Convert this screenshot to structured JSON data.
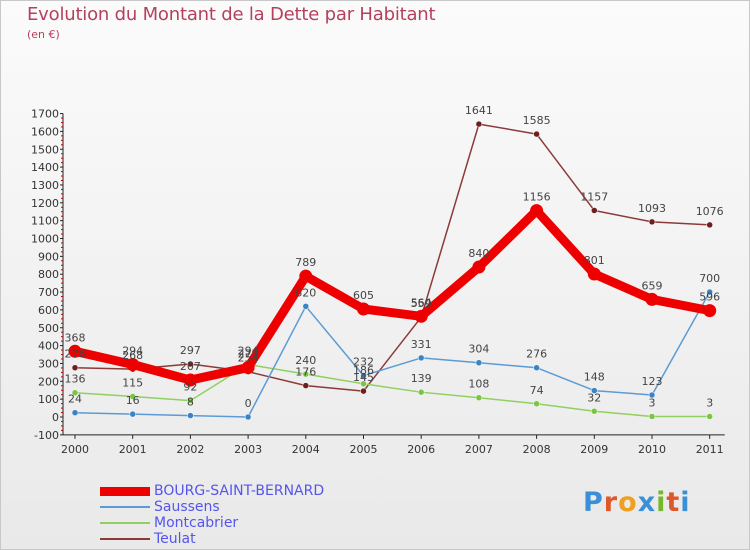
{
  "page": {
    "title": "Evolution du Montant de la Dette par Habitant",
    "unit": "(en €)",
    "logo": "Proxiti",
    "logo_colors": [
      "#3a8fd6",
      "#e0582a",
      "#f0a020",
      "#3a8fd6",
      "#76b82a",
      "#e0582a",
      "#3a8fd6"
    ]
  },
  "chart_data": {
    "type": "line",
    "title": "Evolution du Montant de la Dette par Habitant",
    "subtitle": "(en €)",
    "xlabel": "",
    "ylabel": "",
    "categories": [
      "2000",
      "2001",
      "2002",
      "2003",
      "2004",
      "2005",
      "2006",
      "2007",
      "2008",
      "2009",
      "2010",
      "2011"
    ],
    "ylim": [
      -100,
      1700
    ],
    "yticks": [
      -100,
      0,
      100,
      200,
      300,
      400,
      500,
      600,
      700,
      800,
      900,
      1000,
      1100,
      1200,
      1300,
      1400,
      1500,
      1600,
      1700
    ],
    "grid": false,
    "legend": "bottom-left",
    "series": [
      {
        "name": "BOURG-SAINT-BERNARD",
        "color": "#ee0000",
        "point_color": "#ee0000",
        "emphasis": true,
        "values": [
          368,
          294,
          207,
          277,
          789,
          605,
          564,
          840,
          1156,
          801,
          659,
          596
        ],
        "labels": [
          "368",
          "294",
          "207",
          "277",
          "789",
          "605",
          "564",
          "840",
          "1156",
          "801",
          "659",
          "596"
        ]
      },
      {
        "name": "Saussens",
        "color": "#5b9bd5",
        "point_color": "#3a84c4",
        "values": [
          24,
          16,
          8,
          0,
          620,
          232,
          331,
          304,
          276,
          148,
          123,
          700
        ],
        "labels": [
          "24",
          "16",
          "8",
          "0",
          "620",
          "232",
          "331",
          "304",
          "276",
          "148",
          "123",
          "700"
        ]
      },
      {
        "name": "Montcabrier",
        "color": "#90d060",
        "point_color": "#7cc444",
        "values": [
          136,
          115,
          92,
          294,
          240,
          186,
          139,
          108,
          74,
          32,
          3,
          3
        ],
        "labels": [
          "136",
          "115",
          "92",
          "294",
          "240",
          "186",
          "139",
          "108",
          "74",
          "32",
          "3",
          "3"
        ]
      },
      {
        "name": "Teulat",
        "color": "#8b3a3a",
        "point_color": "#6e1e1e",
        "values": [
          276,
          268,
          297,
          254,
          176,
          145,
          559,
          1641,
          1585,
          1157,
          1093,
          1076
        ],
        "labels": [
          "276",
          "268",
          "297",
          "254",
          "176",
          "145",
          "559",
          "1641",
          "1585",
          "1157",
          "1093",
          "1076"
        ]
      }
    ]
  }
}
